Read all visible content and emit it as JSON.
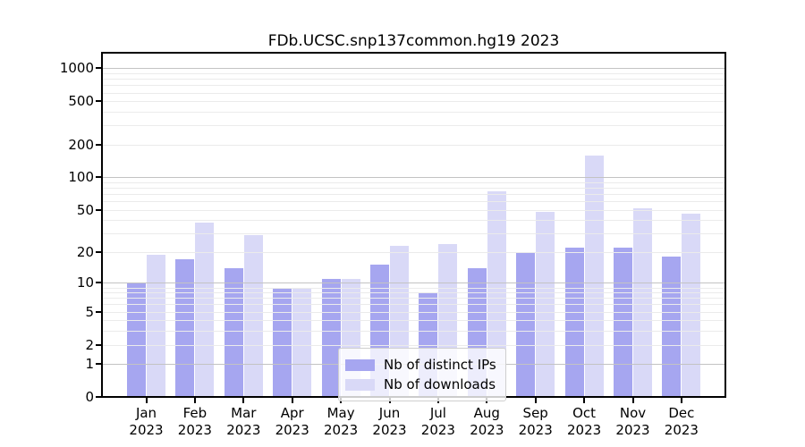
{
  "title": "FDb.UCSC.snp137common.hg19 2023",
  "chart_data": {
    "type": "bar",
    "title": "FDb.UCSC.snp137common.hg19 2023",
    "categories": [
      "Jan",
      "Feb",
      "Mar",
      "Apr",
      "May",
      "Jun",
      "Jul",
      "Aug",
      "Sep",
      "Oct",
      "Nov",
      "Dec"
    ],
    "year_label": "2023",
    "series": [
      {
        "name": "Nb of distinct IPs",
        "color": "#a6a6f0",
        "values": [
          10,
          17,
          14,
          9,
          11,
          15,
          8,
          14,
          20,
          22,
          22,
          18
        ]
      },
      {
        "name": "Nb of downloads",
        "color": "#d9d9f7",
        "values": [
          19,
          38,
          29,
          9,
          11,
          23,
          24,
          75,
          48,
          160,
          52,
          46
        ]
      }
    ],
    "xlabel": "",
    "ylabel": "",
    "y_scale": "log10(1+v)",
    "y_ticks": [
      0,
      1,
      2,
      5,
      10,
      20,
      50,
      100,
      200,
      500,
      1000
    ],
    "y_major_gridlines": [
      1,
      10,
      100,
      1000
    ],
    "y_minor_gridlines": [
      2,
      3,
      4,
      5,
      6,
      7,
      8,
      9,
      20,
      30,
      40,
      50,
      60,
      70,
      80,
      90,
      200,
      300,
      400,
      500,
      600,
      700,
      800,
      900
    ],
    "ylim": [
      0,
      1360
    ],
    "grid": true,
    "grid_over_bars": true,
    "legend_position": "lower center",
    "colors": {
      "background": "#ffffff",
      "frame": "#000000",
      "major_grid": "#c3c3c3",
      "minor_grid": "#ebebeb",
      "distinct_ips": "#a6a6f0",
      "downloads": "#d9d9f7"
    }
  },
  "legend": {
    "items": [
      {
        "label": "Nb of distinct IPs"
      },
      {
        "label": "Nb of downloads"
      }
    ]
  }
}
